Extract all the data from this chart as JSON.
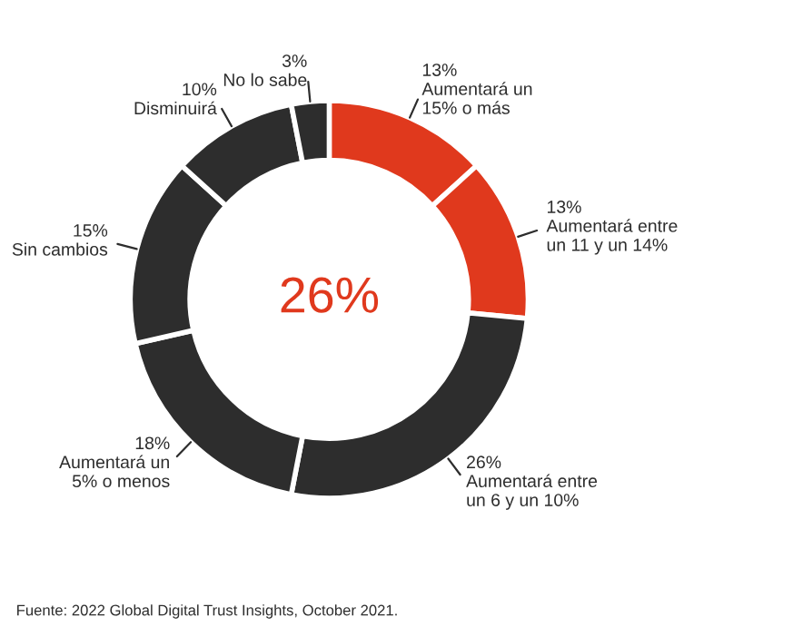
{
  "chart_data": {
    "type": "donut",
    "categories": [
      "Aumentará un\n15% o más",
      "Aumentará entre\nun 11 y un 14%",
      "Aumentará entre\nun 6 y un 10%",
      "Aumentará un\n5% o menos",
      "Sin cambios",
      "Disminuirá",
      "No lo sabe"
    ],
    "values": [
      13,
      13,
      26,
      18,
      15,
      10,
      3
    ],
    "value_labels": [
      "13%",
      "13%",
      "26%",
      "18%",
      "15%",
      "10%",
      "3%"
    ],
    "colors": [
      "#e0391d",
      "#e0391d",
      "#2d2d2d",
      "#2d2d2d",
      "#2d2d2d",
      "#2d2d2d",
      "#2d2d2d"
    ],
    "annotations": [
      "26%",
      "Fuente: 2022 Global Digital Trust Insights, October 2021."
    ]
  }
}
